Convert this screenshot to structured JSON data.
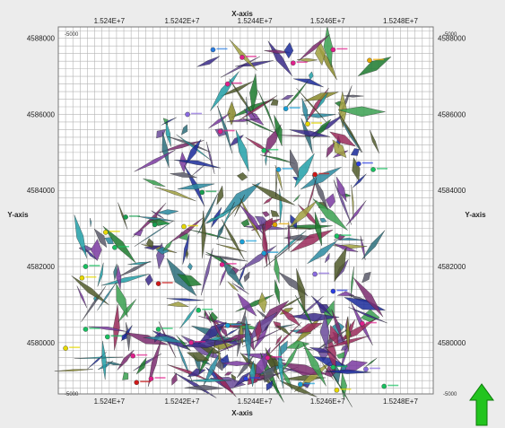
{
  "chart_data": {
    "type": "scatter",
    "title": "",
    "xlabel": "X-axis",
    "ylabel": "Y-axis",
    "xlim": [
      15238600,
      15248900
    ],
    "ylim": [
      4578650,
      4588300
    ],
    "xticks": [
      15240000,
      15242000,
      15244000,
      15246000,
      15248000
    ],
    "xtick_labels": [
      "1.524E+7",
      "1.5242E+7",
      "1.5244E+7",
      "1.5246E+7",
      "1.5248E+7"
    ],
    "yticks": [
      4580000,
      4582000,
      4584000,
      4586000,
      4588000
    ],
    "ytick_labels": [
      "4580000",
      "4582000",
      "4584000",
      "4586000",
      "4588000"
    ],
    "grid": true,
    "grid_step": 200,
    "corner_labels": {
      "top_left": "-5000",
      "top_right": "-5000",
      "bottom_left": "-5000",
      "bottom_right": "-5000"
    },
    "wells": [
      {
        "x": 15242850,
        "y": 4587700,
        "c": "#2a7de1"
      },
      {
        "x": 15243650,
        "y": 4587500,
        "c": "#e0208c"
      },
      {
        "x": 15247150,
        "y": 4587420,
        "c": "#e6a800"
      },
      {
        "x": 15245050,
        "y": 4587350,
        "c": "#e0208c"
      },
      {
        "x": 15246150,
        "y": 4587700,
        "c": "#e0208c"
      },
      {
        "x": 15243250,
        "y": 4586800,
        "c": "#e0208c"
      },
      {
        "x": 15244850,
        "y": 4586150,
        "c": "#18a0d8"
      },
      {
        "x": 15242150,
        "y": 4586000,
        "c": "#8a6ae0"
      },
      {
        "x": 15245450,
        "y": 4585750,
        "c": "#e6d800"
      },
      {
        "x": 15243050,
        "y": 4585550,
        "c": "#e0208c"
      },
      {
        "x": 15244250,
        "y": 4585050,
        "c": "#18c060"
      },
      {
        "x": 15246850,
        "y": 4584700,
        "c": "#2a3de1"
      },
      {
        "x": 15244650,
        "y": 4584550,
        "c": "#18a0d8"
      },
      {
        "x": 15245650,
        "y": 4584420,
        "c": "#d01818"
      },
      {
        "x": 15247250,
        "y": 4584550,
        "c": "#18c060"
      },
      {
        "x": 15242550,
        "y": 4583950,
        "c": "#18a050"
      },
      {
        "x": 15240450,
        "y": 4583300,
        "c": "#18a050"
      },
      {
        "x": 15241250,
        "y": 4583100,
        "c": "#18a050"
      },
      {
        "x": 15242050,
        "y": 4583050,
        "c": "#e6d800"
      },
      {
        "x": 15239900,
        "y": 4582900,
        "c": "#e6d800"
      },
      {
        "x": 15244550,
        "y": 4583100,
        "c": "#e6a800"
      },
      {
        "x": 15246250,
        "y": 4582800,
        "c": "#18c060"
      },
      {
        "x": 15243650,
        "y": 4582650,
        "c": "#18a0d8"
      },
      {
        "x": 15240150,
        "y": 4582500,
        "c": "#18c060"
      },
      {
        "x": 15244250,
        "y": 4582350,
        "c": "#18a0d8"
      },
      {
        "x": 15239350,
        "y": 4582000,
        "c": "#18c060"
      },
      {
        "x": 15243100,
        "y": 4582050,
        "c": "#e0208c"
      },
      {
        "x": 15245650,
        "y": 4581800,
        "c": "#8a6ae0"
      },
      {
        "x": 15241350,
        "y": 4581550,
        "c": "#d01818"
      },
      {
        "x": 15239250,
        "y": 4581700,
        "c": "#e6d800"
      },
      {
        "x": 15246150,
        "y": 4581350,
        "c": "#2a3de1"
      },
      {
        "x": 15242450,
        "y": 4580850,
        "c": "#18c060"
      },
      {
        "x": 15241350,
        "y": 4580350,
        "c": "#18c060"
      },
      {
        "x": 15239350,
        "y": 4580350,
        "c": "#18c060"
      },
      {
        "x": 15243250,
        "y": 4580450,
        "c": "#18a0d8"
      },
      {
        "x": 15246950,
        "y": 4580500,
        "c": "#e0208c"
      },
      {
        "x": 15242250,
        "y": 4580000,
        "c": "#e0208c"
      },
      {
        "x": 15239950,
        "y": 4580150,
        "c": "#18c060"
      },
      {
        "x": 15238800,
        "y": 4579850,
        "c": "#e6d800"
      },
      {
        "x": 15240650,
        "y": 4579650,
        "c": "#e0208c"
      },
      {
        "x": 15244350,
        "y": 4579600,
        "c": "#e0208c"
      },
      {
        "x": 15246150,
        "y": 4579350,
        "c": "#18c060"
      },
      {
        "x": 15247050,
        "y": 4579300,
        "c": "#8a6ae0"
      },
      {
        "x": 15241150,
        "y": 4579050,
        "c": "#e0208c"
      },
      {
        "x": 15243750,
        "y": 4579050,
        "c": "#2a3de1"
      },
      {
        "x": 15240750,
        "y": 4578950,
        "c": "#d01818"
      },
      {
        "x": 15247550,
        "y": 4578850,
        "c": "#18c060"
      },
      {
        "x": 15246250,
        "y": 4578750,
        "c": "#e6d800"
      },
      {
        "x": 15245250,
        "y": 4578900,
        "c": "#18a0d8"
      }
    ]
  }
}
